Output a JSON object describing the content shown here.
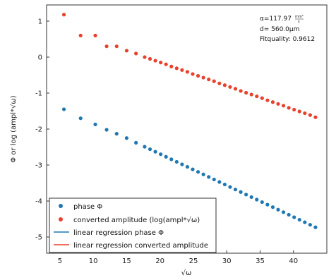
{
  "chart_data": {
    "type": "scatter",
    "title": "",
    "xlabel": "√ω",
    "ylabel": "Φ or log (ampl*√ω)",
    "xlim": [
      3,
      45
    ],
    "ylim": [
      -5.45,
      1.45
    ],
    "xticks": [
      5,
      10,
      15,
      20,
      25,
      30,
      35,
      40
    ],
    "yticks": [
      1,
      0,
      -1,
      -2,
      -3,
      -4,
      -5
    ],
    "xtick_labels": [
      "5",
      "10",
      "15",
      "20",
      "25",
      "30",
      "35",
      "40"
    ],
    "ytick_labels": [
      "1",
      "0",
      "-1",
      "-2",
      "-3",
      "-4",
      "-5"
    ],
    "grid": false,
    "legend_position": "bottom-left",
    "annotation": {
      "alpha_prefix": "α=117.97",
      "alpha_unit_num": "mm²",
      "alpha_unit_den": "s",
      "d": "d= 560.0μm",
      "fitquality": "Fitquality: 0.9612"
    },
    "legend": [
      {
        "label": "phase Φ",
        "kind": "marker",
        "color": "#1f77b4"
      },
      {
        "label": "converted amplitude (log(ampl*√ω)",
        "kind": "marker",
        "color": "#e8412c"
      },
      {
        "label": "linear regression phase Φ",
        "kind": "line",
        "color": "#1f77b4"
      },
      {
        "label": "linear regression converted amplitude",
        "kind": "line",
        "color": "#e8412c"
      }
    ],
    "series": [
      {
        "name": "converted amplitude (log(ampl*√ω)",
        "color": "#e8412c",
        "x": [
          5.6,
          8.1,
          10.3,
          12.0,
          13.5,
          15.0,
          16.4,
          17.7,
          18.5,
          19.3,
          20.1,
          20.9,
          21.7,
          22.5,
          23.3,
          24.1,
          24.9,
          25.7,
          26.5,
          27.3,
          28.1,
          28.9,
          29.7,
          30.5,
          31.3,
          32.1,
          32.9,
          33.7,
          34.5,
          35.3,
          36.1,
          36.9,
          37.7,
          38.5,
          39.3,
          40.1,
          40.9,
          41.7,
          42.5,
          43.3
        ],
        "y": [
          1.18,
          0.6,
          0.6,
          0.3,
          0.3,
          0.18,
          0.1,
          0.0,
          -0.05,
          -0.1,
          -0.15,
          -0.2,
          -0.26,
          -0.31,
          -0.36,
          -0.41,
          -0.47,
          -0.52,
          -0.57,
          -0.62,
          -0.67,
          -0.73,
          -0.78,
          -0.83,
          -0.88,
          -0.94,
          -0.99,
          -1.04,
          -1.09,
          -1.14,
          -1.2,
          -1.25,
          -1.3,
          -1.35,
          -1.41,
          -1.46,
          -1.51,
          -1.56,
          -1.61,
          -1.67
        ]
      },
      {
        "name": "phase Φ",
        "color": "#1f77b4",
        "x": [
          5.6,
          8.1,
          10.3,
          12.0,
          13.5,
          15.0,
          16.4,
          17.7,
          18.5,
          19.3,
          20.1,
          20.9,
          21.7,
          22.5,
          23.3,
          24.1,
          24.9,
          25.7,
          26.5,
          27.3,
          28.1,
          28.9,
          29.7,
          30.5,
          31.3,
          32.1,
          32.9,
          33.7,
          34.5,
          35.3,
          36.1,
          36.9,
          37.7,
          38.5,
          39.3,
          40.1,
          40.9,
          41.7,
          42.5,
          43.3
        ],
        "y": [
          -1.45,
          -1.7,
          -1.87,
          -2.02,
          -2.13,
          -2.25,
          -2.38,
          -2.49,
          -2.56,
          -2.63,
          -2.7,
          -2.77,
          -2.84,
          -2.91,
          -2.98,
          -3.05,
          -3.12,
          -3.19,
          -3.26,
          -3.33,
          -3.4,
          -3.47,
          -3.54,
          -3.61,
          -3.68,
          -3.75,
          -3.82,
          -3.89,
          -3.96,
          -4.03,
          -4.1,
          -4.17,
          -4.24,
          -4.31,
          -4.38,
          -4.45,
          -4.52,
          -4.59,
          -4.66,
          -4.73
        ]
      }
    ]
  }
}
